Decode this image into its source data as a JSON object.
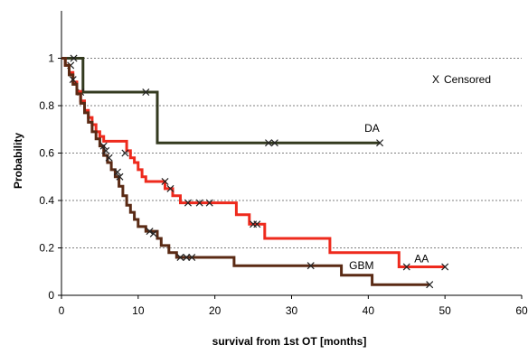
{
  "chart_data": {
    "type": "line",
    "subtype": "kaplan-meier step",
    "title": "",
    "xlabel": "survival from 1st OT [months]",
    "ylabel": "Probability",
    "xlim": [
      0,
      60
    ],
    "ylim": [
      0,
      1.2
    ],
    "x_ticks": [
      0,
      10,
      20,
      30,
      40,
      50,
      60
    ],
    "y_ticks": [
      0,
      0.2,
      0.4,
      0.6,
      0.8,
      1
    ],
    "y_tick_labels": [
      "0",
      "0.2",
      "0.4",
      "0.6",
      "0.8",
      "1"
    ],
    "grid": "horizontal",
    "legend": {
      "marker": "X",
      "text": "Censored",
      "position": "top-right"
    },
    "series": [
      {
        "name": "DA",
        "color": "#333a1f",
        "label_at": [
          39.5,
          0.69
        ],
        "steps": [
          [
            0,
            1
          ],
          [
            2.8,
            1
          ],
          [
            2.8,
            0.857
          ],
          [
            12.5,
            0.857
          ],
          [
            12.5,
            0.643
          ],
          [
            41.5,
            0.643
          ]
        ],
        "censored": [
          [
            1.6,
            1.0
          ],
          [
            2.5,
            0.857
          ],
          [
            11,
            0.857
          ],
          [
            27,
            0.643
          ],
          [
            27.8,
            0.643
          ],
          [
            41.5,
            0.643
          ]
        ]
      },
      {
        "name": "AA",
        "color": "#ee2a1d",
        "label_at": [
          46,
          0.14
        ],
        "steps": [
          [
            0,
            1
          ],
          [
            0.5,
            1
          ],
          [
            0.5,
            0.97
          ],
          [
            1,
            0.97
          ],
          [
            1,
            0.94
          ],
          [
            1.5,
            0.94
          ],
          [
            1.5,
            0.9
          ],
          [
            2,
            0.9
          ],
          [
            2,
            0.86
          ],
          [
            2.5,
            0.86
          ],
          [
            2.5,
            0.82
          ],
          [
            3,
            0.82
          ],
          [
            3,
            0.78
          ],
          [
            3.5,
            0.78
          ],
          [
            3.5,
            0.75
          ],
          [
            4,
            0.75
          ],
          [
            4,
            0.72
          ],
          [
            4.5,
            0.72
          ],
          [
            4.5,
            0.69
          ],
          [
            5,
            0.69
          ],
          [
            5,
            0.67
          ],
          [
            5.5,
            0.67
          ],
          [
            5.5,
            0.65
          ],
          [
            8.5,
            0.65
          ],
          [
            8.5,
            0.61
          ],
          [
            9,
            0.61
          ],
          [
            9,
            0.58
          ],
          [
            9.5,
            0.58
          ],
          [
            9.5,
            0.56
          ],
          [
            10,
            0.56
          ],
          [
            10,
            0.53
          ],
          [
            10.5,
            0.53
          ],
          [
            10.5,
            0.5
          ],
          [
            11,
            0.5
          ],
          [
            11,
            0.48
          ],
          [
            13.5,
            0.48
          ],
          [
            13.5,
            0.45
          ],
          [
            14.5,
            0.45
          ],
          [
            14.5,
            0.42
          ],
          [
            15.5,
            0.42
          ],
          [
            15.5,
            0.39
          ],
          [
            22.8,
            0.39
          ],
          [
            22.8,
            0.34
          ],
          [
            24.5,
            0.34
          ],
          [
            24.5,
            0.3
          ],
          [
            26.5,
            0.3
          ],
          [
            26.5,
            0.24
          ],
          [
            35,
            0.24
          ],
          [
            35,
            0.18
          ],
          [
            44,
            0.18
          ],
          [
            44,
            0.12
          ],
          [
            50,
            0.12
          ]
        ],
        "censored": [
          [
            1.2,
            0.97
          ],
          [
            13.5,
            0.48
          ],
          [
            14.2,
            0.45
          ],
          [
            16.5,
            0.39
          ],
          [
            18,
            0.39
          ],
          [
            19.3,
            0.39
          ],
          [
            25,
            0.3
          ],
          [
            25.5,
            0.3
          ],
          [
            45,
            0.12
          ],
          [
            50,
            0.12
          ]
        ]
      },
      {
        "name": "GBM",
        "color": "#5a2a14",
        "label_at": [
          37.5,
          0.11
        ],
        "steps": [
          [
            0,
            1
          ],
          [
            0.5,
            1
          ],
          [
            0.5,
            0.97
          ],
          [
            1,
            0.97
          ],
          [
            1,
            0.93
          ],
          [
            1.5,
            0.93
          ],
          [
            1.5,
            0.89
          ],
          [
            2,
            0.89
          ],
          [
            2,
            0.85
          ],
          [
            2.5,
            0.85
          ],
          [
            2.5,
            0.81
          ],
          [
            3,
            0.81
          ],
          [
            3,
            0.77
          ],
          [
            3.5,
            0.77
          ],
          [
            3.5,
            0.73
          ],
          [
            4,
            0.73
          ],
          [
            4,
            0.69
          ],
          [
            4.5,
            0.69
          ],
          [
            4.5,
            0.66
          ],
          [
            5,
            0.66
          ],
          [
            5,
            0.63
          ],
          [
            5.5,
            0.63
          ],
          [
            5.5,
            0.59
          ],
          [
            6,
            0.59
          ],
          [
            6,
            0.56
          ],
          [
            6.5,
            0.56
          ],
          [
            6.5,
            0.53
          ],
          [
            7,
            0.53
          ],
          [
            7,
            0.5
          ],
          [
            7.5,
            0.5
          ],
          [
            7.5,
            0.46
          ],
          [
            8,
            0.46
          ],
          [
            8,
            0.42
          ],
          [
            8.5,
            0.42
          ],
          [
            8.5,
            0.38
          ],
          [
            9,
            0.38
          ],
          [
            9,
            0.35
          ],
          [
            9.5,
            0.35
          ],
          [
            9.5,
            0.32
          ],
          [
            10,
            0.32
          ],
          [
            10,
            0.29
          ],
          [
            11,
            0.29
          ],
          [
            11,
            0.27
          ],
          [
            12.5,
            0.27
          ],
          [
            12.5,
            0.24
          ],
          [
            13,
            0.24
          ],
          [
            13,
            0.21
          ],
          [
            14,
            0.21
          ],
          [
            14,
            0.18
          ],
          [
            15,
            0.18
          ],
          [
            15,
            0.16
          ],
          [
            22.5,
            0.16
          ],
          [
            22.5,
            0.125
          ],
          [
            36.5,
            0.125
          ],
          [
            36.5,
            0.085
          ],
          [
            40.5,
            0.085
          ],
          [
            40.5,
            0.045
          ],
          [
            48,
            0.045
          ]
        ],
        "censored": [
          [
            1.5,
            0.91
          ],
          [
            5.5,
            0.63
          ],
          [
            5.8,
            0.61
          ],
          [
            6.2,
            0.58
          ],
          [
            7.3,
            0.52
          ],
          [
            7.6,
            0.5
          ],
          [
            8.3,
            0.6
          ],
          [
            11.5,
            0.27
          ],
          [
            12,
            0.26
          ],
          [
            15.5,
            0.16
          ],
          [
            16.3,
            0.16
          ],
          [
            17,
            0.16
          ],
          [
            32.5,
            0.125
          ],
          [
            48,
            0.045
          ]
        ]
      }
    ]
  }
}
